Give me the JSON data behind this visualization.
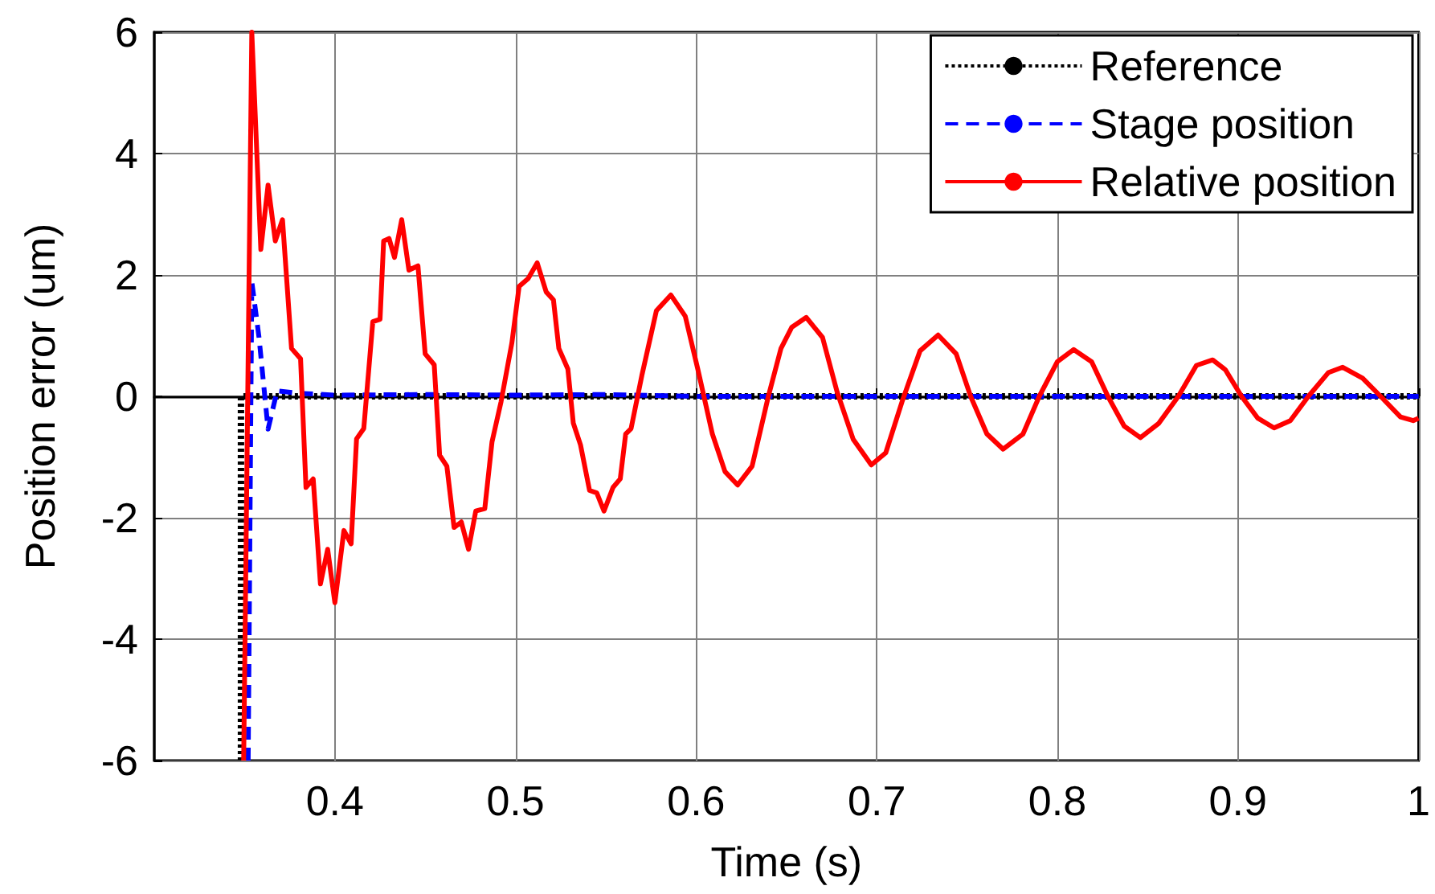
{
  "chart_data": {
    "type": "line",
    "xlabel": "Time (s)",
    "ylabel": "Position error (um)",
    "xlim": [
      0.3,
      1
    ],
    "xticks": [
      0.4,
      0.5,
      0.6,
      0.7,
      0.8,
      0.9,
      1
    ],
    "ylim": [
      -6,
      6
    ],
    "yticks": [
      -6,
      -4,
      -2,
      0,
      2,
      4,
      6
    ],
    "grid": true,
    "legend": "top right",
    "marker": "none",
    "series": [
      {
        "name": "Reference",
        "color": "#000000",
        "line_style": "dotted",
        "x": [
          0.348,
          0.348,
          1
        ],
        "values": [
          -6,
          0,
          0
        ]
      },
      {
        "name": "Stage position",
        "color": "#0000ff",
        "line_style": "dashed",
        "x": [
          0.352,
          0.354,
          0.358,
          0.363,
          0.368,
          0.38,
          0.4,
          0.45,
          0.5,
          0.55,
          0.6,
          0.7,
          0.8,
          0.9,
          1
        ],
        "values": [
          -6,
          1.89,
          0.97,
          -0.54,
          0.09,
          0.05,
          0.02,
          0.03,
          0.02,
          0.03,
          0,
          0,
          0,
          0,
          0
        ]
      },
      {
        "name": "Relative position",
        "color": "#ff0000",
        "line_style": "solid",
        "x": [
          0.3495,
          0.354,
          0.359,
          0.363,
          0.367,
          0.371,
          0.376,
          0.381,
          0.384,
          0.388,
          0.392,
          0.396,
          0.4,
          0.405,
          0.409,
          0.412,
          0.416,
          0.421,
          0.425,
          0.427,
          0.43,
          0.433,
          0.437,
          0.441,
          0.446,
          0.45,
          0.455,
          0.458,
          0.462,
          0.466,
          0.47,
          0.474,
          0.478,
          0.483,
          0.487,
          0.492,
          0.498,
          0.502,
          0.507,
          0.512,
          0.517,
          0.521,
          0.524,
          0.529,
          0.532,
          0.536,
          0.541,
          0.545,
          0.549,
          0.554,
          0.558,
          0.561,
          0.564,
          0.57,
          0.578,
          0.586,
          0.594,
          0.601,
          0.609,
          0.616,
          0.623,
          0.631,
          0.64,
          0.647,
          0.653,
          0.661,
          0.67,
          0.678,
          0.687,
          0.697,
          0.705,
          0.714,
          0.724,
          0.734,
          0.744,
          0.752,
          0.761,
          0.77,
          0.781,
          0.79,
          0.8,
          0.809,
          0.819,
          0.828,
          0.837,
          0.846,
          0.856,
          0.867,
          0.877,
          0.886,
          0.893,
          0.902,
          0.911,
          0.92,
          0.929,
          0.939,
          0.95,
          0.958,
          0.969,
          0.979,
          0.99,
          0.997,
          1
        ],
        "values": [
          -6,
          6.0,
          2.42,
          3.48,
          2.56,
          2.91,
          0.79,
          0.62,
          -1.5,
          -1.36,
          -3.09,
          -2.52,
          -3.4,
          -2.21,
          -2.43,
          -0.7,
          -0.53,
          1.23,
          1.27,
          2.56,
          2.6,
          2.29,
          2.91,
          2.08,
          2.15,
          0.7,
          0.52,
          -0.97,
          -1.15,
          -2.16,
          -2.07,
          -2.52,
          -1.89,
          -1.85,
          -0.75,
          -0.09,
          0.88,
          1.81,
          1.94,
          2.2,
          1.72,
          1.59,
          0.79,
          0.45,
          -0.44,
          -0.8,
          -1.55,
          -1.59,
          -1.89,
          -1.5,
          -1.36,
          -0.62,
          -0.53,
          0.35,
          1.41,
          1.67,
          1.32,
          0.44,
          -0.62,
          -1.24,
          -1.46,
          -1.15,
          0,
          0.79,
          1.14,
          1.3,
          0.97,
          0.08,
          -0.71,
          -1.13,
          -0.93,
          -0.09,
          0.75,
          1.01,
          0.7,
          0,
          -0.62,
          -0.87,
          -0.62,
          0,
          0.57,
          0.77,
          0.57,
          0,
          -0.49,
          -0.68,
          -0.45,
          0,
          0.51,
          0.6,
          0.44,
          0,
          -0.36,
          -0.52,
          -0.4,
          0,
          0.39,
          0.48,
          0.3,
          0,
          -0.34,
          -0.4,
          -0.36
        ]
      }
    ]
  }
}
